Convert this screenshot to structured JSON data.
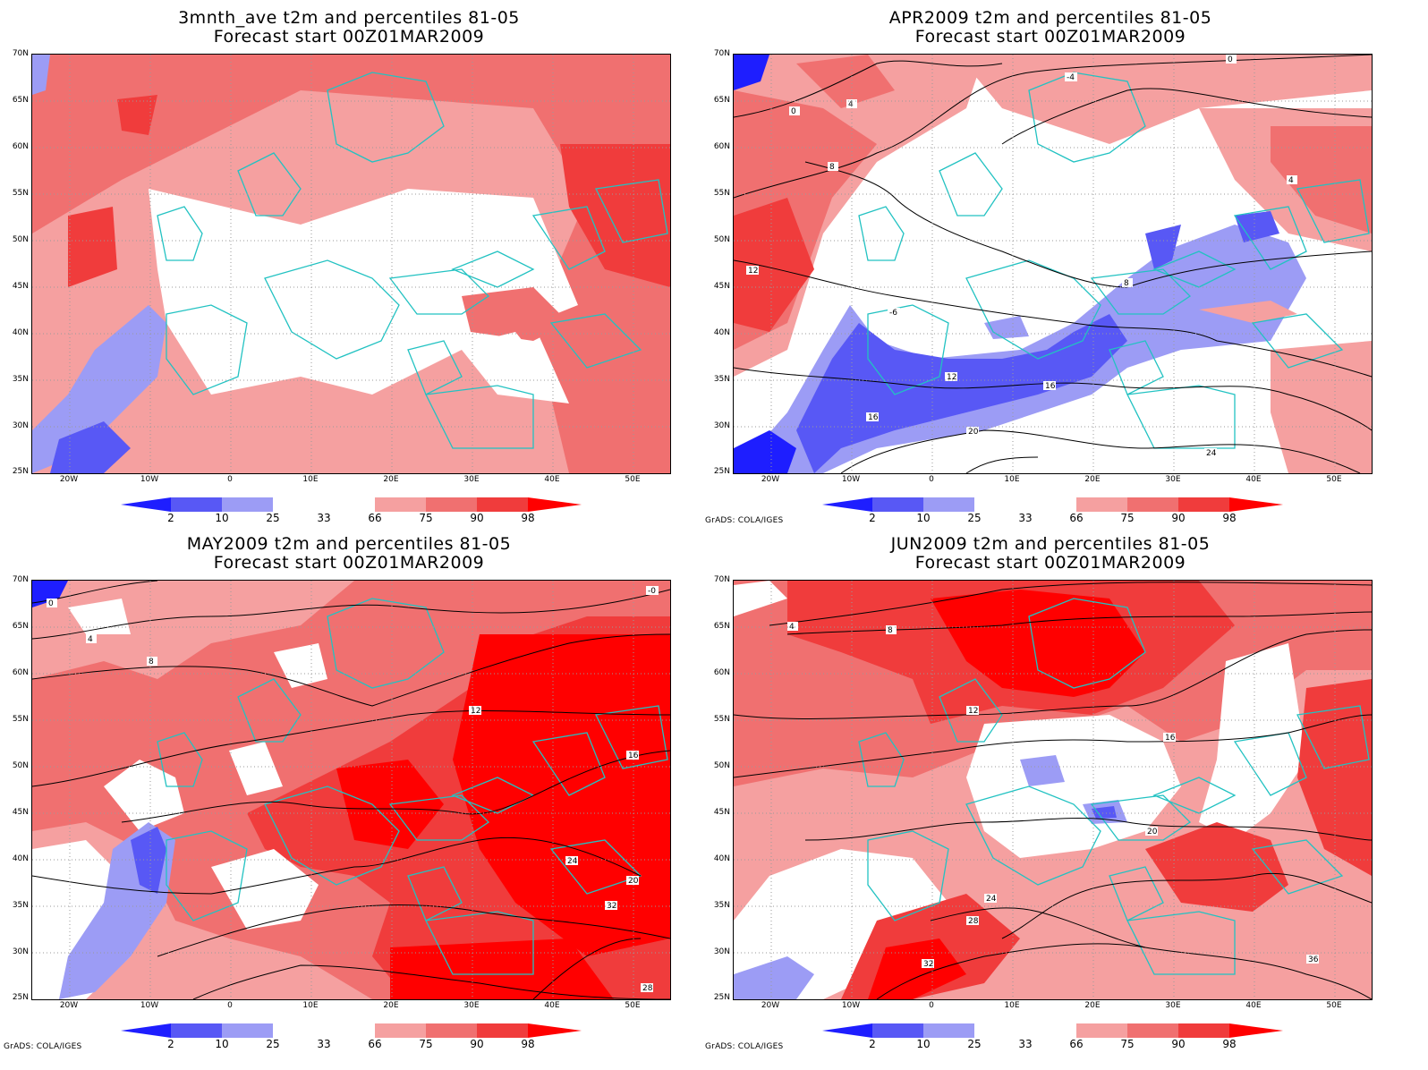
{
  "colors": {
    "p2": "#1e1eff",
    "p10": "#5858f5",
    "p25": "#9c9cf5",
    "p33": "#ffffff",
    "p66": "#f5a0a0",
    "p75": "#f07070",
    "p90": "#f03c3c",
    "p98": "#ff0000",
    "coast": "#22c2c2",
    "contour": "#000000",
    "grid": "#9a9a9a"
  },
  "lat_labels": [
    "70N",
    "65N",
    "60N",
    "55N",
    "50N",
    "45N",
    "40N",
    "35N",
    "30N",
    "25N"
  ],
  "lon_labels": [
    "20W",
    "10W",
    "0",
    "10E",
    "20E",
    "30E",
    "40E",
    "50E"
  ],
  "colorbar_labels": [
    "2",
    "10",
    "25",
    "33",
    "66",
    "75",
    "90",
    "98"
  ],
  "credit": "GrADS: COLA/IGES",
  "panels": [
    {
      "title1": "3mnth_ave t2m and percentiles 81-05",
      "title2": "Forecast start 00Z01MAR2009",
      "contour_labels": []
    },
    {
      "title1": "APR2009 t2m and percentiles 81-05",
      "title2": "Forecast start 00Z01MAR2009",
      "contour_labels": [
        "0",
        "-4",
        "4",
        "0",
        "8",
        "4",
        "12",
        "8",
        "12",
        "16",
        "20",
        "24",
        "-6",
        "16"
      ]
    },
    {
      "title1": "MAY2009 t2m and percentiles 81-05",
      "title2": "Forecast start 00Z01MAR2009",
      "contour_labels": [
        "0",
        "4",
        "8",
        "12",
        "16",
        "20",
        "24",
        "28",
        "32",
        "-0"
      ]
    },
    {
      "title1": "JUN2009 t2m and percentiles 81-05",
      "title2": "Forecast start 00Z01MAR2009",
      "contour_labels": [
        "4",
        "8",
        "12",
        "16",
        "20",
        "24",
        "28",
        "32",
        "36"
      ]
    }
  ]
}
